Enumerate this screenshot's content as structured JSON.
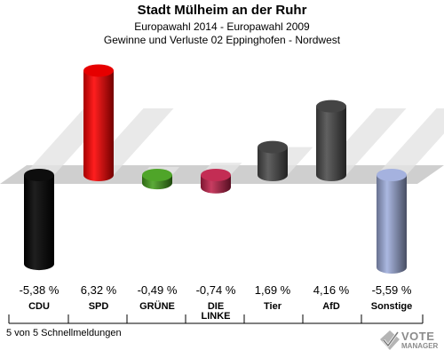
{
  "header": {
    "title": "Stadt Mülheim an der Ruhr",
    "subtitle1": "Europawahl 2014 - Europawahl 2009",
    "subtitle2": "Gewinne und Verluste 02 Eppinghofen - Nordwest"
  },
  "footer": {
    "reports": "5 von 5 Schnellmeldungen"
  },
  "logo": {
    "text1": "VOTE",
    "text2": "MANAGER"
  },
  "chart_data": {
    "type": "bar",
    "categories": [
      "CDU",
      "SPD",
      "GRÜNE",
      "DIE LINKE",
      "Tier",
      "AfD",
      "Sonstige"
    ],
    "category_lines": [
      [
        "CDU"
      ],
      [
        "SPD"
      ],
      [
        "GRÜNE"
      ],
      [
        "DIE",
        "LINKE"
      ],
      [
        "Tier"
      ],
      [
        "AfD"
      ],
      [
        "Sonstige"
      ]
    ],
    "values": [
      -5.38,
      6.32,
      -0.49,
      -0.74,
      1.69,
      4.16,
      -5.59
    ],
    "value_labels": [
      "-5,38 %",
      "6,32 %",
      "-0,49 %",
      "-0,74 %",
      "1,69 %",
      "4,16 %",
      "-5,59 %"
    ],
    "colors": [
      "#000000",
      "#ff0000",
      "#46a01e",
      "#c0224b",
      "#4c4c4c",
      "#4c4c4c",
      "#a0aedd"
    ],
    "title": "Stadt Mülheim an der Ruhr",
    "ylim": [
      -6,
      6.5
    ],
    "grid": false,
    "legend": "none"
  }
}
